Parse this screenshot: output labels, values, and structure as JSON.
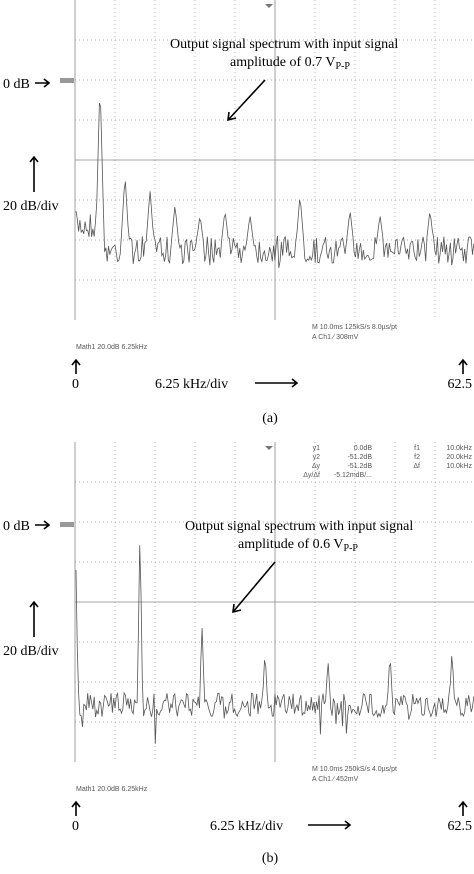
{
  "panels": [
    {
      "zero_label": "0 dB",
      "scale_label": "20 dB/div",
      "annotation": {
        "line1": "Output signal spectrum with input signal",
        "line2": "amplitude of 0.7 V",
        "subscript": "P-P"
      },
      "readout": [
        "M 10.0ms 125kS/s    8.0µs/pt",
        "A  Ch1  ∕  308mV"
      ],
      "math": "Math1   20.0dB      6.25kHz",
      "x_start": "0",
      "x_scale": "6.25 kHz/div",
      "x_end": "62.5",
      "caption": "(a)"
    },
    {
      "zero_label": "0 dB",
      "scale_label": "20 dB/div",
      "annotation": {
        "line1": "Output signal spectrum with input signal",
        "line2": "amplitude of 0.6 V",
        "subscript": "P-P"
      },
      "readout": [
        "M 10.0ms 250kS/s    4.0µs/pt",
        "A  Ch1  ∕  452mV"
      ],
      "cursor": [
        [
          "y1",
          "0.0dB",
          "f1",
          "10.0kHz"
        ],
        [
          "y2",
          "-51.2dB",
          "f2",
          "20.0kHz"
        ],
        [
          "Δy",
          "-51.2dB",
          "Δf",
          "10.0kHz"
        ],
        [
          "Δy/Δf",
          "-5.12mdB/...",
          "",
          ""
        ]
      ],
      "math": "Math1   20.0dB      6.25kHz",
      "x_start": "0",
      "x_scale": "6.25 kHz/div",
      "x_end": "62.5",
      "caption": "(b)"
    }
  ]
}
